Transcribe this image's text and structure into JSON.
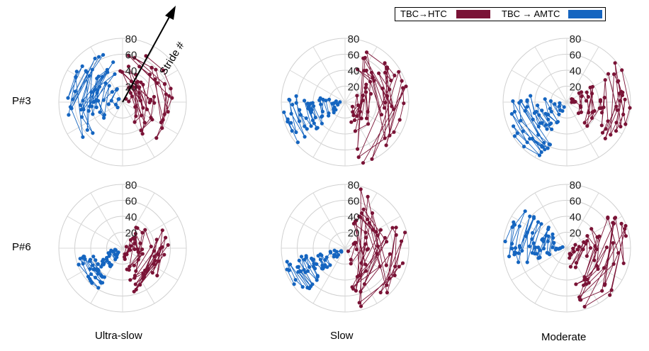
{
  "legend": {
    "series_a": "TBC→HTC",
    "series_b": "TBC → AMTC",
    "color_a": "#7a1336",
    "color_b": "#1565c0"
  },
  "stride_label": "Stride #",
  "rows": [
    "P#3",
    "P#6"
  ],
  "columns": [
    "Ultra-slow",
    "Slow",
    "Moderate"
  ],
  "chart_data": [
    {
      "type": "scatter",
      "panel": "P#3 Ultra-slow",
      "r_ticks": [
        "20",
        "40",
        "60",
        "80"
      ],
      "rlim": [
        0,
        80
      ],
      "series": [
        {
          "name": "TBC→HTC",
          "theta_range_deg": [
            -60,
            95
          ],
          "r_range": [
            5,
            65
          ],
          "approx_points": 60
        },
        {
          "name": "TBC → AMTC",
          "theta_range_deg": [
            100,
            230
          ],
          "r_range": [
            5,
            70
          ],
          "approx_points": 60
        }
      ]
    },
    {
      "type": "scatter",
      "panel": "P#3 Slow",
      "r_ticks": [
        "20",
        "40",
        "60",
        "80"
      ],
      "rlim": [
        0,
        80
      ],
      "series": [
        {
          "name": "TBC→HTC",
          "theta_range_deg": [
            -80,
            70
          ],
          "r_range": [
            10,
            80
          ],
          "approx_points": 60
        },
        {
          "name": "TBC → AMTC",
          "theta_range_deg": [
            170,
            225
          ],
          "r_range": [
            5,
            80
          ],
          "approx_points": 60
        }
      ]
    },
    {
      "type": "scatter",
      "panel": "P#3 Moderate",
      "r_ticks": [
        "20",
        "40",
        "60",
        "80"
      ],
      "rlim": [
        0,
        80
      ],
      "series": [
        {
          "name": "TBC→HTC",
          "theta_range_deg": [
            -50,
            40
          ],
          "r_range": [
            5,
            80
          ],
          "approx_points": 60
        },
        {
          "name": "TBC → AMTC",
          "theta_range_deg": [
            170,
            250
          ],
          "r_range": [
            5,
            80
          ],
          "approx_points": 60
        }
      ]
    },
    {
      "type": "scatter",
      "panel": "P#6 Ultra-slow",
      "r_ticks": [
        "20",
        "40",
        "60",
        "80"
      ],
      "rlim": [
        0,
        80
      ],
      "series": [
        {
          "name": "TBC→HTC",
          "theta_range_deg": [
            -80,
            60
          ],
          "r_range": [
            5,
            60
          ],
          "approx_points": 60
        },
        {
          "name": "TBC → AMTC",
          "theta_range_deg": [
            190,
            240
          ],
          "r_range": [
            5,
            60
          ],
          "approx_points": 60
        }
      ]
    },
    {
      "type": "scatter",
      "panel": "P#6 Slow",
      "r_ticks": [
        "20",
        "40",
        "60",
        "80"
      ],
      "rlim": [
        0,
        80
      ],
      "series": [
        {
          "name": "TBC→HTC",
          "theta_range_deg": [
            -80,
            80
          ],
          "r_range": [
            5,
            80
          ],
          "approx_points": 60
        },
        {
          "name": "TBC → AMTC",
          "theta_range_deg": [
            190,
            230
          ],
          "r_range": [
            5,
            80
          ],
          "approx_points": 60
        }
      ]
    },
    {
      "type": "scatter",
      "panel": "P#6 Moderate",
      "r_ticks": [
        "20",
        "40",
        "60",
        "80"
      ],
      "rlim": [
        0,
        80
      ],
      "series": [
        {
          "name": "TBC→HTC",
          "theta_range_deg": [
            -80,
            40
          ],
          "r_range": [
            5,
            80
          ],
          "approx_points": 60
        },
        {
          "name": "TBC → AMTC",
          "theta_range_deg": [
            130,
            200
          ],
          "r_range": [
            5,
            80
          ],
          "approx_points": 60
        }
      ]
    }
  ]
}
